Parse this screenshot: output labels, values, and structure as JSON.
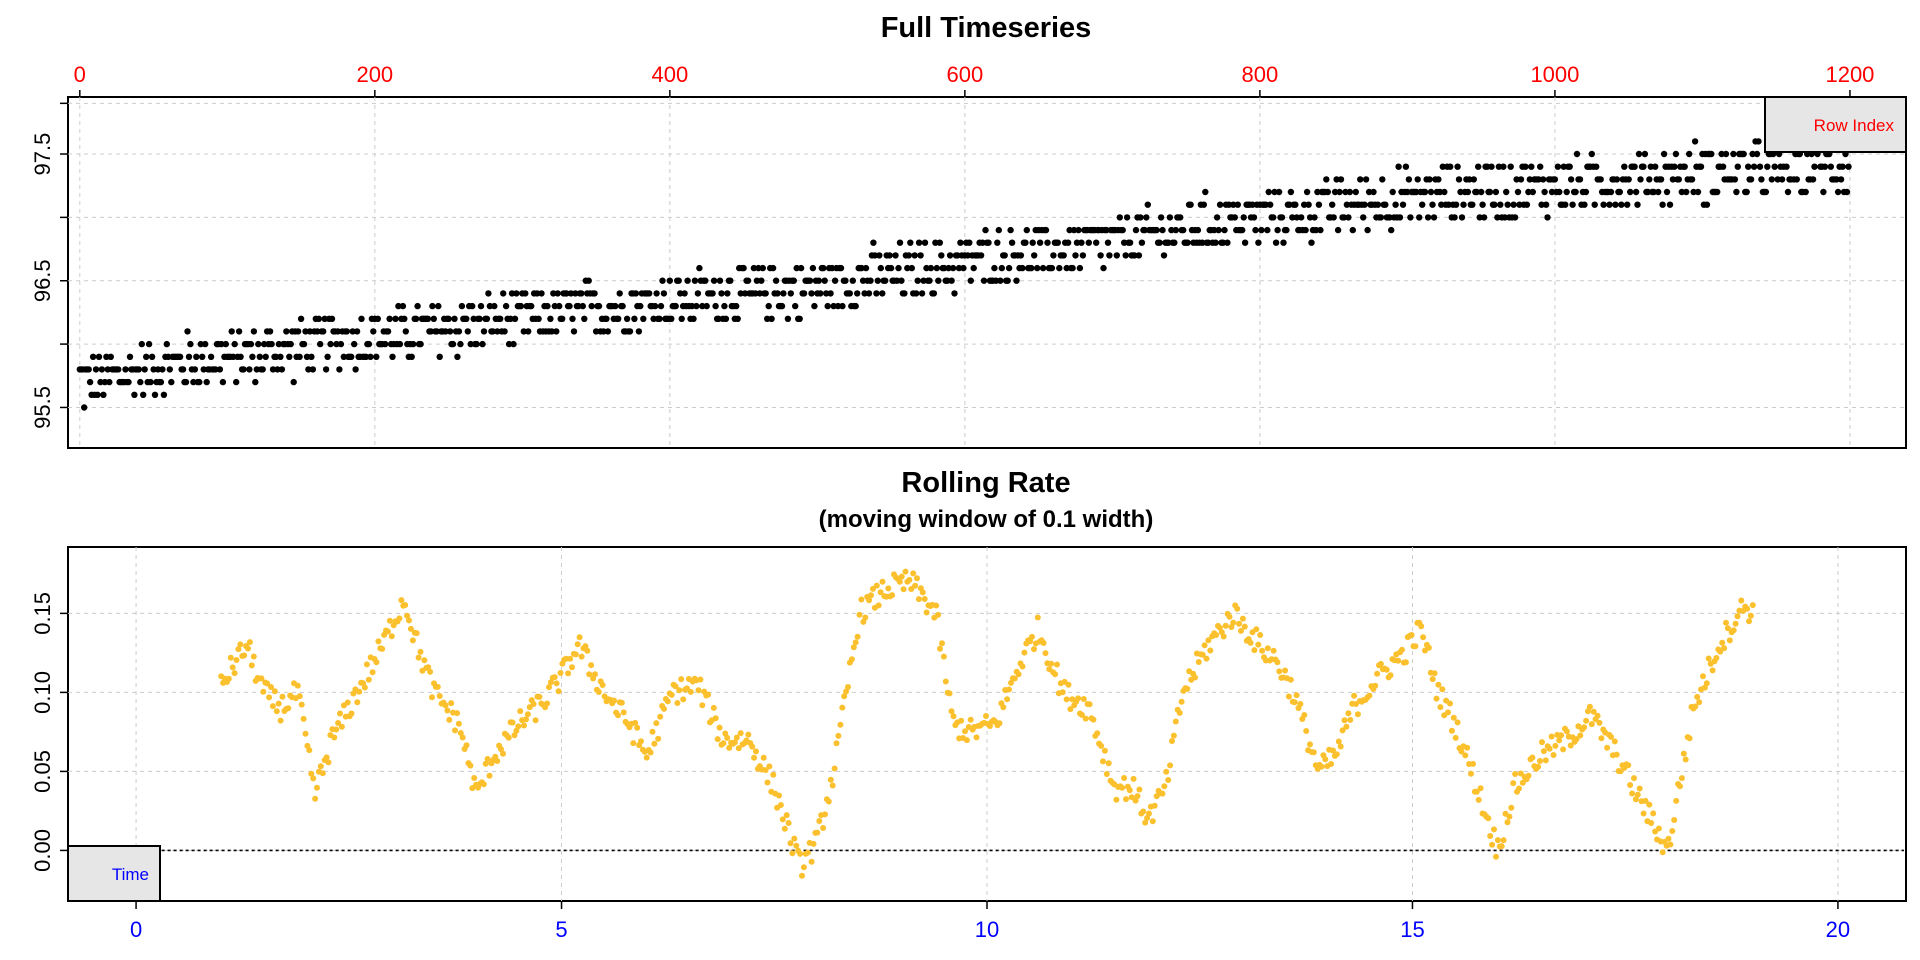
{
  "colors": {
    "top_points": "#000000",
    "bottom_points": "#FBC02D",
    "top_axis": "#FF0000",
    "bottom_axis": "#0000FF",
    "grid": "#CCCCCC",
    "legend_bg": "#E6E6E6"
  },
  "chart_data": [
    {
      "type": "scatter",
      "title": "Full Timeseries",
      "xlabel": "",
      "ylabel": "",
      "xlim": [
        -8,
        1238
      ],
      "ylim": [
        95.18,
        97.95
      ],
      "x_ticks": [
        "0",
        "200",
        "400",
        "600",
        "800",
        "1000",
        "1200"
      ],
      "x_tick_values": [
        0,
        200,
        400,
        600,
        800,
        1000,
        1200
      ],
      "y_ticks": [
        "95.5",
        "96.5",
        "97.5"
      ],
      "y_tick_values": [
        95.5,
        96.5,
        97.5
      ],
      "y_minor_tick_values": [
        95.5,
        96.0,
        96.5,
        97.0,
        97.5,
        97.9
      ],
      "grid": true,
      "x_axis_position": "top",
      "x_axis_color": "#FF0000",
      "legend": {
        "label": "Row Index",
        "placement": "top-right"
      },
      "n_points": 1200,
      "series_summary": {
        "x": [
          0,
          100,
          200,
          300,
          400,
          500,
          600,
          700,
          800,
          900,
          1000,
          1100,
          1200
        ],
        "y": [
          95.7,
          95.9,
          96.05,
          96.2,
          96.35,
          96.45,
          96.65,
          96.8,
          97.0,
          97.15,
          97.25,
          97.35,
          97.4
        ]
      },
      "value_step": 0.1,
      "noise_spread": 0.25
    },
    {
      "type": "scatter",
      "title": "Rolling Rate",
      "subtitle": "(moving window of 0.1 width)",
      "xlabel": "",
      "ylabel": "",
      "xlim": [
        -0.8,
        20.8
      ],
      "ylim": [
        -0.032,
        0.192
      ],
      "x_ticks": [
        "0",
        "5",
        "10",
        "15",
        "20"
      ],
      "x_tick_values": [
        0,
        5,
        10,
        15,
        20
      ],
      "y_ticks": [
        "0.00",
        "0.05",
        "0.10",
        "0.15"
      ],
      "y_tick_values": [
        0,
        0.05,
        0.1,
        0.15
      ],
      "grid": true,
      "x_axis_color": "#0000FF",
      "reference_line": {
        "y": 0,
        "style": "dotted"
      },
      "legend": {
        "label": "Time",
        "placement": "bottom-left"
      },
      "series": [
        {
          "x": [
            1.0,
            1.3,
            1.5,
            1.7,
            1.9,
            2.1,
            2.3,
            2.6,
            2.9,
            3.15,
            3.3,
            3.5,
            3.8,
            4.0,
            4.2,
            4.5,
            4.8,
            5.0,
            5.2,
            5.5,
            5.8,
            6.0,
            6.3,
            6.6,
            6.9,
            7.2,
            7.5,
            7.8,
            8.0,
            8.2,
            8.5,
            8.8,
            9.1,
            9.4,
            9.6,
            9.8,
            10.1,
            10.4,
            10.6,
            10.9,
            11.2,
            11.5,
            11.7,
            11.9,
            12.1,
            12.3,
            12.6,
            12.9,
            13.2,
            13.4,
            13.6,
            13.9,
            14.1,
            14.3,
            14.6,
            14.9,
            15.1,
            15.3,
            15.5,
            15.7,
            16.0,
            16.2,
            16.5,
            16.8,
            17.1,
            17.4,
            17.6,
            17.8,
            18.0,
            18.3,
            18.6,
            18.9,
            19.0
          ],
          "y": [
            0.105,
            0.13,
            0.1,
            0.09,
            0.1,
            0.035,
            0.07,
            0.1,
            0.13,
            0.16,
            0.13,
            0.1,
            0.08,
            0.035,
            0.06,
            0.08,
            0.095,
            0.11,
            0.13,
            0.1,
            0.08,
            0.06,
            0.1,
            0.105,
            0.07,
            0.07,
            0.04,
            -0.01,
            0.005,
            0.05,
            0.15,
            0.165,
            0.17,
            0.15,
            0.08,
            0.075,
            0.08,
            0.12,
            0.14,
            0.1,
            0.09,
            0.04,
            0.04,
            0.02,
            0.04,
            0.1,
            0.13,
            0.15,
            0.13,
            0.12,
            0.1,
            0.05,
            0.06,
            0.09,
            0.11,
            0.125,
            0.14,
            0.1,
            0.08,
            0.05,
            0.0,
            0.04,
            0.06,
            0.07,
            0.085,
            0.06,
            0.04,
            0.02,
            0.0,
            0.09,
            0.13,
            0.155,
            0.15
          ],
          "n_points": 800,
          "jitter": 0.008
        }
      ]
    }
  ]
}
